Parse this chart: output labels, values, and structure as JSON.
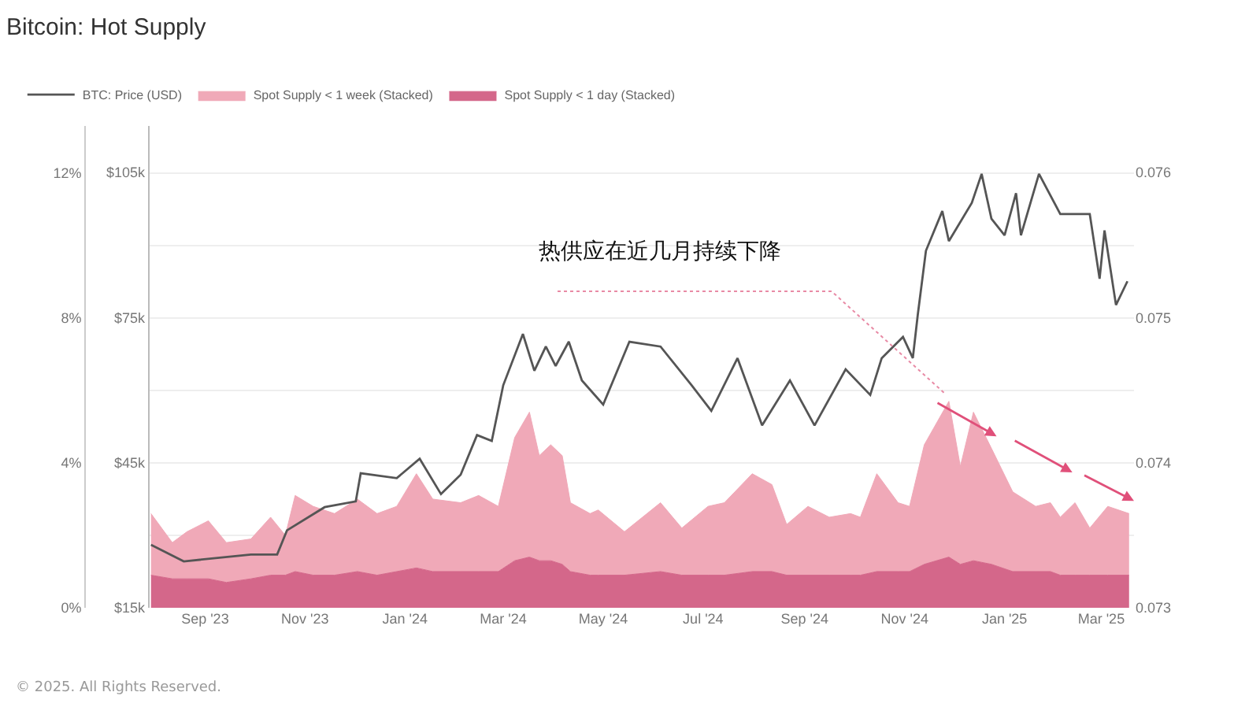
{
  "chart_data": {
    "type": "area",
    "title": "Bitcoin: Hot Supply",
    "annotations": [
      "热供应在近几月持续下降",
      "© 2025. All Rights Reserved."
    ],
    "stacked": true,
    "legend": "top left",
    "grid": "y",
    "marker": "none",
    "x": [
      "2023-07-30",
      "2023-08-12",
      "2023-08-21",
      "2023-09-03",
      "2023-09-14",
      "2023-09-29",
      "2023-10-11",
      "2023-10-20",
      "2023-10-26",
      "2023-11-06",
      "2023-11-19",
      "2023-12-03",
      "2023-12-15",
      "2023-12-27",
      "2024-01-08",
      "2024-01-18",
      "2024-02-04",
      "2024-02-15",
      "2024-02-27",
      "2024-03-08",
      "2024-03-17",
      "2024-03-23",
      "2024-03-30",
      "2024-04-06",
      "2024-04-11",
      "2024-04-23",
      "2024-04-28",
      "2024-05-14",
      "2024-06-05",
      "2024-06-18",
      "2024-07-04",
      "2024-07-14",
      "2024-07-31",
      "2024-08-12",
      "2024-08-21",
      "2024-09-03",
      "2024-09-16",
      "2024-09-29",
      "2024-10-05",
      "2024-10-15",
      "2024-10-28",
      "2024-11-04",
      "2024-11-13",
      "2024-11-28",
      "2024-12-05",
      "2024-12-13",
      "2024-12-24",
      "2025-01-06",
      "2025-01-20",
      "2025-01-29",
      "2025-02-04",
      "2025-02-13",
      "2025-02-22",
      "2025-03-05",
      "2025-03-18"
    ],
    "xlim": [
      "2023-07-29",
      "2025-03-21"
    ],
    "xticks": [
      {
        "value": "2023-09-01",
        "label": "Sep '23"
      },
      {
        "value": "2023-11-01",
        "label": "Nov '23"
      },
      {
        "value": "2024-01-01",
        "label": "Jan '24"
      },
      {
        "value": "2024-03-01",
        "label": "Mar '24"
      },
      {
        "value": "2024-05-01",
        "label": "May '24"
      },
      {
        "value": "2024-07-01",
        "label": "Jul '24"
      },
      {
        "value": "2024-09-01",
        "label": "Sep '24"
      },
      {
        "value": "2024-11-01",
        "label": "Nov '24"
      },
      {
        "value": "2025-01-01",
        "label": "Jan '25"
      },
      {
        "value": "2025-03-01",
        "label": "Mar '25"
      }
    ],
    "ylim": [
      0,
      13.3
    ],
    "yticks": [
      {
        "value": 0,
        "label": "0%"
      },
      {
        "value": 2,
        "label": null
      },
      {
        "value": 4,
        "label": "4%"
      },
      {
        "value": 6,
        "label": null
      },
      {
        "value": 8,
        "label": "8%"
      },
      {
        "value": 10,
        "label": null
      },
      {
        "value": 12,
        "label": "12%"
      }
    ],
    "y2lim": [
      15000,
      114600
    ],
    "y2ticks": [
      {
        "value": 15000,
        "label": "$15k"
      },
      {
        "value": 45000,
        "label": "$45k"
      },
      {
        "value": 75000,
        "label": "$75k"
      },
      {
        "value": 105000,
        "label": "$105k"
      }
    ],
    "y3lim": [
      0.073,
      0.07632
    ],
    "y3ticks": [
      0.073,
      0.074,
      0.075,
      0.076
    ],
    "series": [
      {
        "name": "BTC: Price (USD)",
        "type": "line",
        "axis": "y2",
        "color": "#555555",
        "x": [
          "2023-07-30",
          "2023-08-19",
          "2023-09-29",
          "2023-10-15",
          "2023-10-21",
          "2023-11-13",
          "2023-12-02",
          "2023-12-05",
          "2023-12-27",
          "2024-01-10",
          "2024-01-23",
          "2024-02-04",
          "2024-02-14",
          "2024-02-23",
          "2024-03-01",
          "2024-03-13",
          "2024-03-20",
          "2024-03-27",
          "2024-04-02",
          "2024-04-10",
          "2024-04-18",
          "2024-05-01",
          "2024-05-17",
          "2024-06-05",
          "2024-06-24",
          "2024-07-06",
          "2024-07-22",
          "2024-08-06",
          "2024-08-23",
          "2024-09-07",
          "2024-09-26",
          "2024-10-11",
          "2024-10-18",
          "2024-10-31",
          "2024-11-06",
          "2024-11-09",
          "2024-11-14",
          "2024-11-24",
          "2024-11-28",
          "2024-12-12",
          "2024-12-18",
          "2024-12-24",
          "2025-01-01",
          "2025-01-08",
          "2025-01-11",
          "2025-01-22",
          "2025-02-04",
          "2025-02-22",
          "2025-02-28",
          "2025-03-03",
          "2025-03-10",
          "2025-03-17"
        ],
        "values": [
          28000,
          24600,
          26000,
          26000,
          31000,
          35800,
          37000,
          42800,
          41800,
          45800,
          38500,
          42500,
          50700,
          49500,
          61000,
          71600,
          64000,
          69000,
          65000,
          70000,
          62000,
          57000,
          70000,
          69000,
          61000,
          55700,
          66600,
          52700,
          62000,
          52700,
          64300,
          59000,
          66600,
          71000,
          66600,
          75500,
          88800,
          97000,
          90800,
          98700,
          104700,
          95400,
          92000,
          100700,
          92000,
          104700,
          96400,
          96400,
          83000,
          93000,
          77600,
          82500
        ]
      },
      {
        "name": "Spot Supply < 1 day (Stacked)",
        "color": "#d4678a",
        "values": [
          0.9,
          0.8,
          0.8,
          0.8,
          0.7,
          0.8,
          0.9,
          0.9,
          1.0,
          0.9,
          0.9,
          1.0,
          0.9,
          1.0,
          1.1,
          1.0,
          1.0,
          1.0,
          1.0,
          1.3,
          1.4,
          1.3,
          1.3,
          1.2,
          1.0,
          0.9,
          0.9,
          0.9,
          1.0,
          0.9,
          0.9,
          0.9,
          1.0,
          1.0,
          0.9,
          0.9,
          0.9,
          0.9,
          0.9,
          1.0,
          1.0,
          1.0,
          1.2,
          1.4,
          1.2,
          1.3,
          1.2,
          1.0,
          1.0,
          1.0,
          0.9,
          0.9,
          0.9,
          0.9,
          0.9
        ]
      },
      {
        "name": "Spot Supply < 1 week (Stacked)",
        "color": "#f0a9b8",
        "values": [
          1.7,
          1.0,
          1.3,
          1.6,
          1.1,
          1.1,
          1.6,
          1.1,
          2.1,
          1.9,
          1.7,
          2.0,
          1.7,
          1.8,
          2.6,
          2.0,
          1.9,
          2.1,
          1.8,
          3.4,
          4.0,
          2.9,
          3.2,
          3.0,
          1.9,
          1.7,
          1.8,
          1.2,
          1.9,
          1.3,
          1.9,
          2.0,
          2.7,
          2.4,
          1.4,
          1.9,
          1.6,
          1.7,
          1.6,
          2.7,
          1.9,
          1.8,
          3.3,
          4.3,
          2.7,
          4.1,
          3.2,
          2.2,
          1.8,
          1.9,
          1.6,
          2.0,
          1.3,
          1.9,
          1.7
        ]
      }
    ]
  }
}
